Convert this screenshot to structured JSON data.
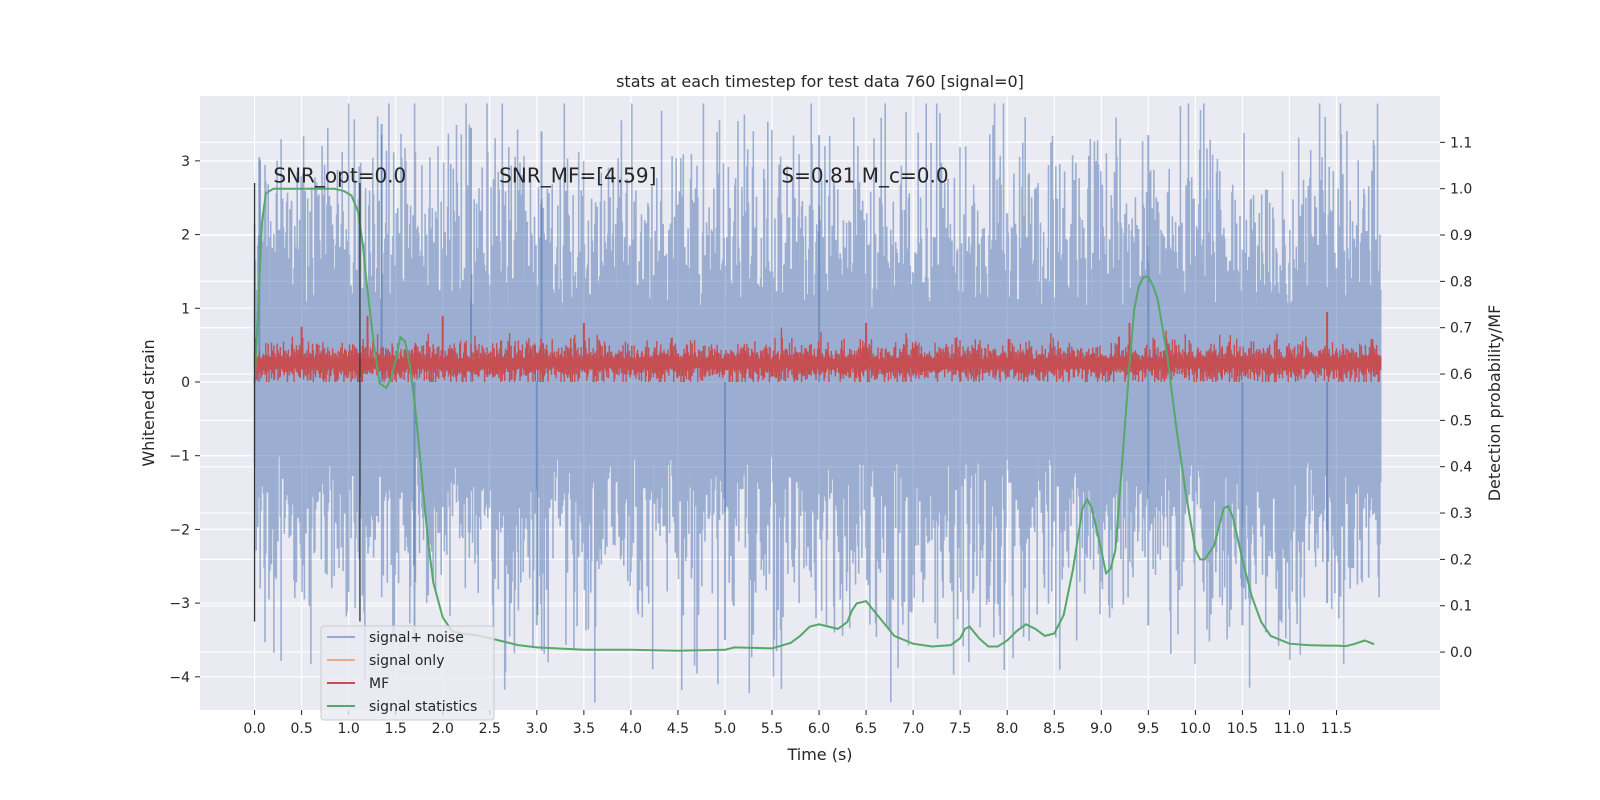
{
  "chart_data": {
    "type": "line",
    "title": "stats at each timestep for test data 760 [signal=0]",
    "xlabel": "Time (s)",
    "ylabel": "Whitened strain",
    "y2label": "Detection probability/MF",
    "xlim": [
      -0.58,
      12.6
    ],
    "ylim": [
      -4.45,
      3.88
    ],
    "y2lim": [
      -0.125,
      1.2
    ],
    "xticks": [
      0.0,
      0.5,
      1.0,
      1.5,
      2.0,
      2.5,
      3.0,
      3.5,
      4.0,
      4.5,
      5.0,
      5.5,
      6.0,
      6.5,
      7.0,
      7.5,
      8.0,
      8.5,
      9.0,
      9.5,
      10.0,
      10.5,
      11.0,
      11.5
    ],
    "xtick_labels": [
      "0.0",
      "0.5",
      "1.0",
      "1.5",
      "2.0",
      "2.5",
      "3.0",
      "3.5",
      "4.0",
      "4.5",
      "5.0",
      "5.5",
      "6.0",
      "6.5",
      "7.0",
      "7.5",
      "8.0",
      "8.5",
      "9.0",
      "9.5",
      "10.0",
      "10.5",
      "11.0",
      "11.5"
    ],
    "yticks": [
      -4,
      -3,
      -2,
      -1,
      0,
      1,
      2,
      3
    ],
    "ytick_labels": [
      "−4",
      "−3",
      "−2",
      "−1",
      "0",
      "1",
      "2",
      "3"
    ],
    "y2ticks": [
      0.0,
      0.1,
      0.2,
      0.3,
      0.4,
      0.5,
      0.6,
      0.7,
      0.8,
      0.9,
      1.0,
      1.1
    ],
    "y2tick_labels": [
      "0.0",
      "0.1",
      "0.2",
      "0.3",
      "0.4",
      "0.5",
      "0.6",
      "0.7",
      "0.8",
      "0.9",
      "1.0",
      "1.1"
    ],
    "grid": true,
    "legend_position": "lower-left",
    "annotations": [
      {
        "text": "SNR_opt=0.0",
        "x": 0.2,
        "y": 2.8
      },
      {
        "text": "SNR_MF=[4.59]",
        "x": 2.6,
        "y": 2.8
      },
      {
        "text": "S=0.81   M_c=0.0",
        "x": 5.6,
        "y": 2.8
      }
    ],
    "vertical_lines": [
      {
        "x": 0.0,
        "y_top": 2.7,
        "y_bottom": -3.25
      },
      {
        "x": 1.12,
        "y_top": 2.7,
        "y_bottom": -3.25
      }
    ],
    "series": [
      {
        "name": "signal+ noise",
        "axis": "left",
        "color": "#4c72b0",
        "kind": "noise",
        "x_range": [
          0.0,
          11.97
        ],
        "typical_range": [
          -1.5,
          1.5
        ],
        "extremes": [
          [
            0.05,
            3.05
          ],
          [
            1.35,
            3.5
          ],
          [
            2.3,
            3.45
          ],
          [
            3.05,
            3.4
          ],
          [
            6.0,
            3.35
          ],
          [
            9.5,
            3.35
          ],
          [
            1.7,
            -3.5
          ],
          [
            5.0,
            -3.5
          ],
          [
            3.0,
            -3.3
          ],
          [
            9.5,
            -3.3
          ],
          [
            10.5,
            -3.3
          ],
          [
            11.4,
            -3.0
          ]
        ]
      },
      {
        "name": "signal only",
        "axis": "left",
        "color": "#dd8452",
        "x": [],
        "y": []
      },
      {
        "name": "MF",
        "axis": "left",
        "color": "#c44e52",
        "kind": "band",
        "x_range": [
          0.0,
          11.97
        ],
        "typical_range": [
          0.0,
          0.5
        ],
        "extremes": [
          [
            0.5,
            0.75
          ],
          [
            1.2,
            0.9
          ],
          [
            2.0,
            0.9
          ],
          [
            3.5,
            0.8
          ],
          [
            6.5,
            0.8
          ],
          [
            9.3,
            0.8
          ],
          [
            11.4,
            0.95
          ]
        ]
      },
      {
        "name": "signal statistics",
        "axis": "right",
        "color": "#55a868",
        "x": [
          0.0,
          0.04,
          0.08,
          0.12,
          0.16,
          0.2,
          0.3,
          0.5,
          0.7,
          0.85,
          0.95,
          1.03,
          1.1,
          1.15,
          1.2,
          1.27,
          1.33,
          1.4,
          1.45,
          1.5,
          1.55,
          1.6,
          1.65,
          1.7,
          1.75,
          1.8,
          1.85,
          1.9,
          2.0,
          2.1,
          2.2,
          2.4,
          2.6,
          2.8,
          3.0,
          3.5,
          4.0,
          4.5,
          5.0,
          5.1,
          5.5,
          5.7,
          5.8,
          5.9,
          6.0,
          6.1,
          6.2,
          6.3,
          6.35,
          6.4,
          6.5,
          6.6,
          6.8,
          7.0,
          7.2,
          7.4,
          7.5,
          7.55,
          7.6,
          7.7,
          7.8,
          7.9,
          8.0,
          8.1,
          8.2,
          8.3,
          8.4,
          8.5,
          8.6,
          8.7,
          8.8,
          8.85,
          8.9,
          9.0,
          9.05,
          9.1,
          9.15,
          9.2,
          9.3,
          9.35,
          9.4,
          9.45,
          9.5,
          9.55,
          9.6,
          9.7,
          9.8,
          9.9,
          10.0,
          10.05,
          10.1,
          10.2,
          10.25,
          10.3,
          10.35,
          10.4,
          10.5,
          10.6,
          10.7,
          10.8,
          11.0,
          11.2,
          11.4,
          11.5,
          11.6,
          11.7,
          11.8,
          11.9
        ],
        "y": [
          0.58,
          0.75,
          0.93,
          0.99,
          0.995,
          1.0,
          1.0,
          1.0,
          1.0,
          1.0,
          0.995,
          0.985,
          0.95,
          0.88,
          0.78,
          0.66,
          0.58,
          0.57,
          0.59,
          0.63,
          0.68,
          0.67,
          0.62,
          0.54,
          0.44,
          0.33,
          0.23,
          0.15,
          0.075,
          0.045,
          0.04,
          0.035,
          0.025,
          0.015,
          0.01,
          0.005,
          0.005,
          0.003,
          0.005,
          0.01,
          0.008,
          0.02,
          0.035,
          0.055,
          0.06,
          0.055,
          0.05,
          0.065,
          0.09,
          0.105,
          0.11,
          0.085,
          0.035,
          0.018,
          0.012,
          0.015,
          0.03,
          0.05,
          0.055,
          0.03,
          0.012,
          0.012,
          0.025,
          0.045,
          0.06,
          0.05,
          0.035,
          0.04,
          0.08,
          0.18,
          0.31,
          0.33,
          0.31,
          0.22,
          0.17,
          0.18,
          0.22,
          0.35,
          0.62,
          0.74,
          0.79,
          0.81,
          0.81,
          0.79,
          0.76,
          0.64,
          0.48,
          0.34,
          0.22,
          0.2,
          0.2,
          0.23,
          0.27,
          0.31,
          0.315,
          0.29,
          0.2,
          0.12,
          0.065,
          0.035,
          0.018,
          0.015,
          0.014,
          0.014,
          0.013,
          0.018,
          0.025,
          0.017
        ]
      }
    ]
  }
}
